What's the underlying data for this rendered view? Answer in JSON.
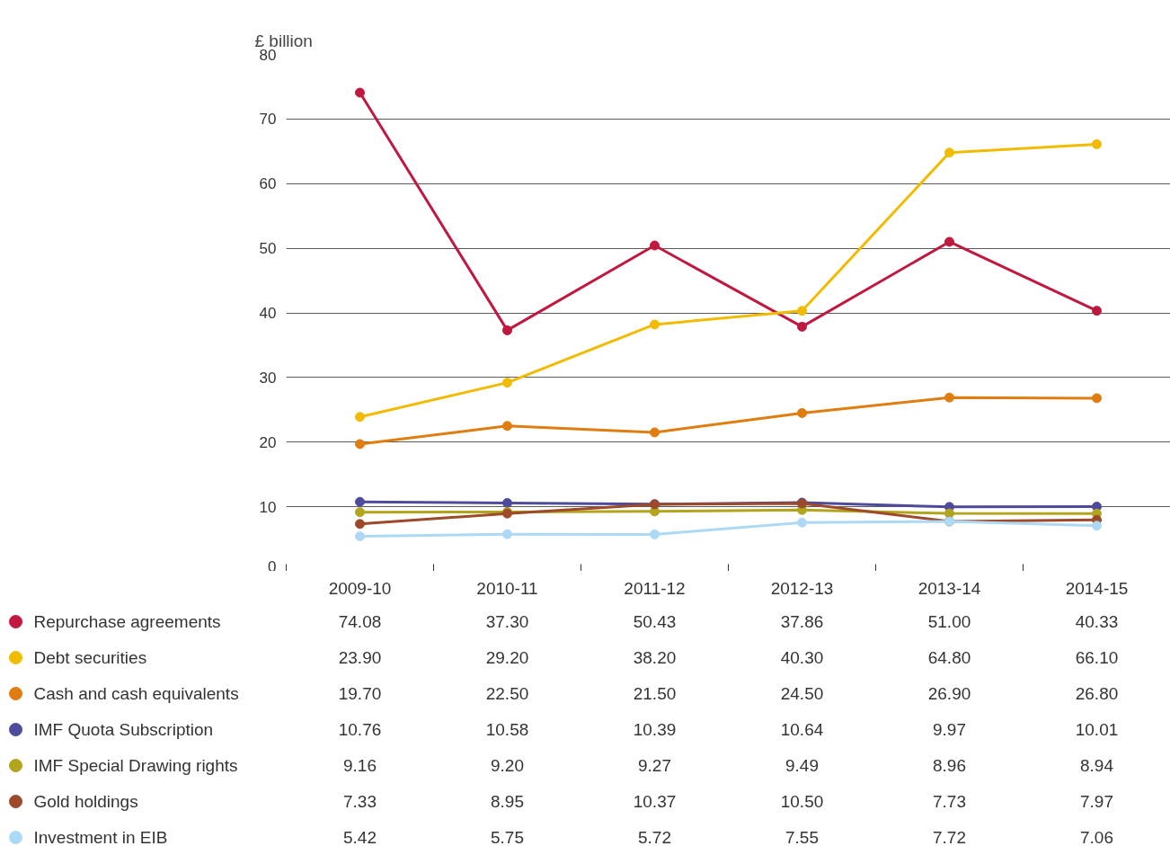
{
  "chart_data": {
    "type": "line",
    "ylabel": "£ billion",
    "categories": [
      "2009-10",
      "2010-11",
      "2011-12",
      "2012-13",
      "2013-14",
      "2014-15"
    ],
    "ylim": [
      0,
      80
    ],
    "yticks": [
      0,
      10,
      20,
      30,
      40,
      50,
      60,
      70,
      80
    ],
    "grid": "y",
    "marker": "circle",
    "legend": "bottom",
    "series": [
      {
        "name": "Repurchase agreements",
        "color": "#c0183f",
        "values": [
          74.08,
          37.3,
          50.43,
          37.86,
          51.0,
          40.33
        ],
        "value_labels": [
          "74.08",
          "37.30",
          "50.43",
          "37.86",
          "51.00",
          "40.33"
        ]
      },
      {
        "name": "Debt securities",
        "color": "#f0bb00",
        "values": [
          23.9,
          29.2,
          38.2,
          40.3,
          64.8,
          66.1
        ],
        "value_labels": [
          "23.90",
          "29.20",
          "38.20",
          "40.30",
          "64.80",
          "66.10"
        ]
      },
      {
        "name": "Cash and cash equivalents",
        "color": "#e07d10",
        "values": [
          19.7,
          22.5,
          21.5,
          24.5,
          26.9,
          26.8
        ],
        "value_labels": [
          "19.70",
          "22.50",
          "21.50",
          "24.50",
          "26.90",
          "26.80"
        ]
      },
      {
        "name": "IMF Quota Subscription",
        "color": "#4e4b9c",
        "values": [
          10.76,
          10.58,
          10.39,
          10.64,
          9.97,
          10.01
        ],
        "value_labels": [
          "10.76",
          "10.58",
          "10.39",
          "10.64",
          "9.97",
          "10.01"
        ]
      },
      {
        "name": "IMF Special Drawing rights",
        "color": "#b2a41c",
        "values": [
          9.16,
          9.2,
          9.27,
          9.49,
          8.96,
          8.94
        ],
        "value_labels": [
          "9.16",
          "9.20",
          "9.27",
          "9.49",
          "8.96",
          "8.94"
        ]
      },
      {
        "name": "Gold holdings",
        "color": "#9c4a2a",
        "values": [
          7.33,
          8.95,
          10.37,
          10.5,
          7.73,
          7.97
        ],
        "value_labels": [
          "7.33",
          "8.95",
          "10.37",
          "10.50",
          "7.73",
          "7.97"
        ]
      },
      {
        "name": "Investment in EIB",
        "color": "#aed9f5",
        "values": [
          5.42,
          5.75,
          5.72,
          7.55,
          7.72,
          7.06
        ],
        "value_labels": [
          "5.42",
          "5.75",
          "5.72",
          "7.55",
          "7.72",
          "7.06"
        ]
      }
    ]
  }
}
